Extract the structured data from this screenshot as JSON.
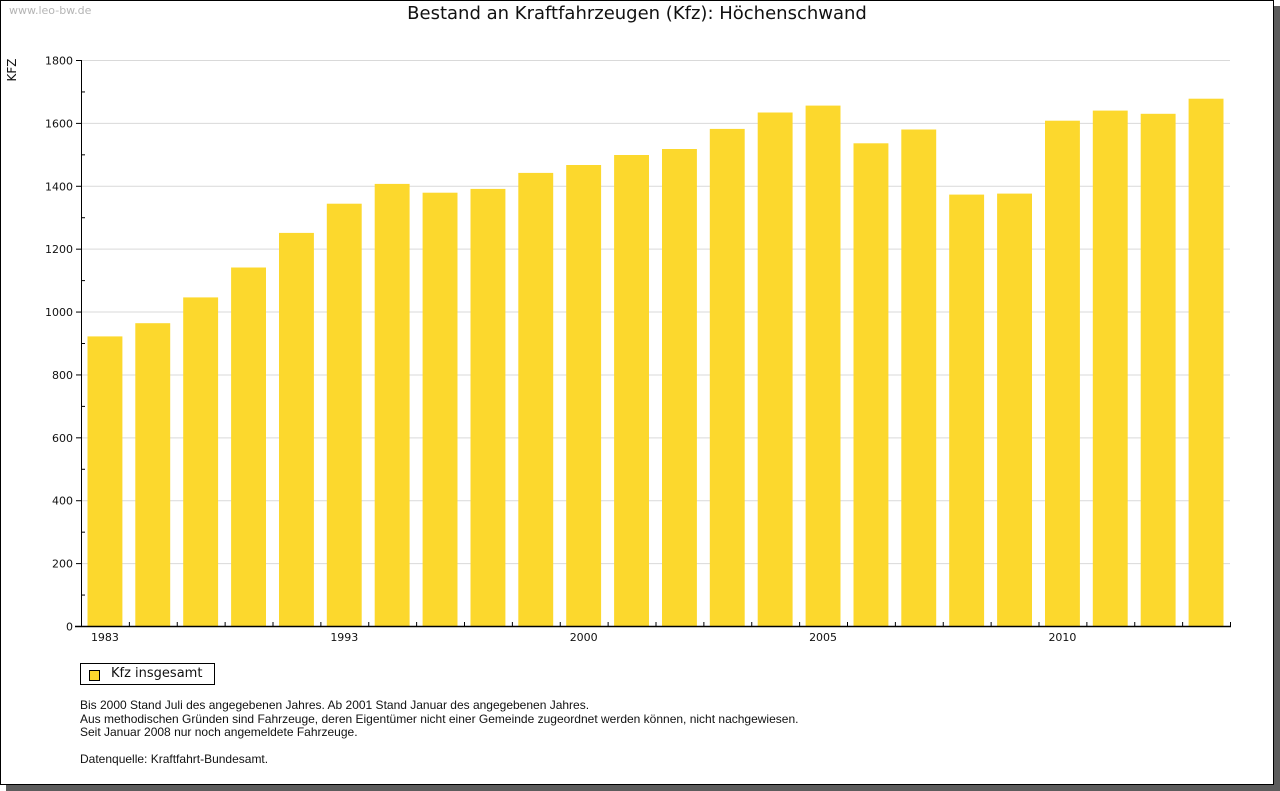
{
  "watermark": "www.leo-bw.de",
  "colors": {
    "bar": "#fcd82d",
    "grid": "#d9d9d9",
    "axis": "#000000",
    "shadow": "#5c5c5c"
  },
  "legend": {
    "label": "Kfz insgesamt"
  },
  "notes": [
    "Bis 2000 Stand Juli des angegebenen Jahres. Ab 2001 Stand Januar des angegebenen Jahres.",
    "Aus methodischen Gründen sind Fahrzeuge, deren Eigentümer nicht einer Gemeinde zugeordnet werden können, nicht nachgewiesen.",
    "Seit Januar 2008 nur noch angemeldete Fahrzeuge."
  ],
  "source": "Datenquelle: Kraftfahrt-Bundesamt.",
  "chart_data": {
    "type": "bar",
    "title": "Bestand an Kraftfahrzeugen (Kfz): Höchenschwand",
    "xlabel": "",
    "ylabel": "KFZ",
    "ylim": [
      0,
      1800
    ],
    "yticks": [
      0,
      200,
      400,
      600,
      800,
      1000,
      1200,
      1400,
      1600,
      1800
    ],
    "grid": true,
    "legend_position": "bottom-left",
    "categories": [
      "1983",
      "",
      "",
      "",
      "",
      "1993",
      "",
      "",
      "",
      "",
      "2000",
      "",
      "",
      "",
      "",
      "2005",
      "",
      "",
      "",
      "",
      "2010",
      "",
      "",
      ""
    ],
    "series": [
      {
        "name": "Kfz insgesamt",
        "values": [
          921,
          963,
          1045,
          1140,
          1250,
          1343,
          1406,
          1378,
          1390,
          1441,
          1466,
          1498,
          1517,
          1581,
          1633,
          1655,
          1535,
          1579,
          1372,
          1375,
          1607,
          1639,
          1629,
          1677
        ]
      }
    ]
  }
}
